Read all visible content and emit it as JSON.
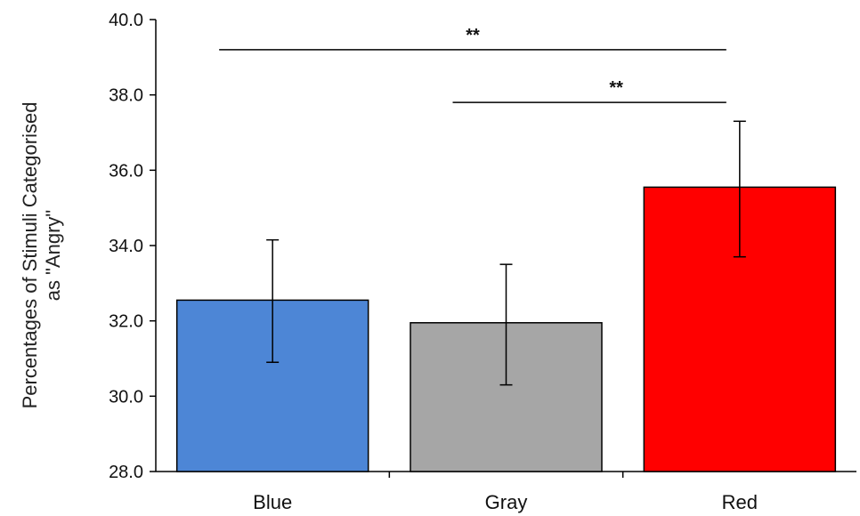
{
  "chart_data": {
    "type": "bar",
    "categories": [
      "Blue",
      "Gray",
      "Red"
    ],
    "values": [
      32.55,
      31.95,
      35.55
    ],
    "error_low": [
      30.9,
      30.3,
      33.7
    ],
    "error_high": [
      34.15,
      33.5,
      37.3
    ],
    "colors": [
      "#4d86d6",
      "#a6a6a6",
      "#ff0000"
    ],
    "ylabel_lines": [
      "Percentages of Stimuli Categorised",
      "as \"Angry\""
    ],
    "ylim": [
      28.0,
      40.0
    ],
    "yticks": [
      "28.0",
      "30.0",
      "32.0",
      "34.0",
      "36.0",
      "38.0",
      "40.0"
    ],
    "grid": false,
    "significance": [
      {
        "from": "Blue",
        "to": "Red",
        "label": "**",
        "level": 39.2
      },
      {
        "from": "Gray",
        "to": "Red",
        "label": "**",
        "level": 37.8
      }
    ]
  }
}
